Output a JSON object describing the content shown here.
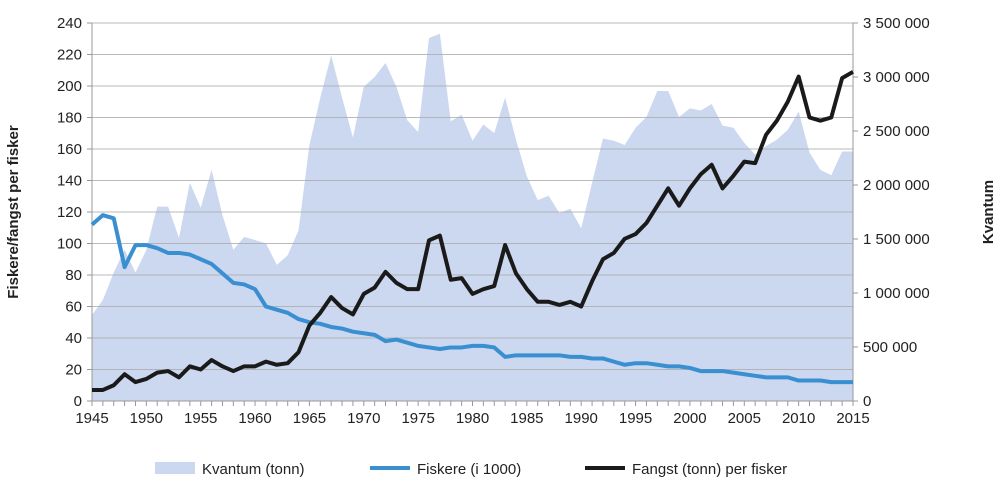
{
  "chart_data": {
    "type": "area+line",
    "title": "",
    "xlabel": "",
    "ylabel": "Fiskere/fangst per fisker",
    "y2label": "Kvantum",
    "xlim": [
      1945,
      2015
    ],
    "ylim": [
      0,
      240
    ],
    "y2lim": [
      0,
      3500000
    ],
    "xticks": [
      "1945",
      "1950",
      "1955",
      "1960",
      "1965",
      "1970",
      "1975",
      "1980",
      "1985",
      "1990",
      "1995",
      "2000",
      "2005",
      "2010",
      "2015"
    ],
    "yticks": [
      "0",
      "20",
      "40",
      "60",
      "80",
      "100",
      "120",
      "140",
      "160",
      "180",
      "200",
      "220",
      "240"
    ],
    "y2ticks": [
      "0",
      "500 000",
      "1 000 000",
      "1 500 000",
      "2 000 000",
      "2 500 000",
      "3 000 000",
      "3 500 000"
    ],
    "grid": true,
    "legend_position": "bottom",
    "x_start": 1945,
    "series": [
      {
        "name": "Kvantum (tonn)",
        "kind": "area",
        "axis": "right",
        "color": "#cbd8ef",
        "values": [
          796000,
          935000,
          1190000,
          1400000,
          1190000,
          1400000,
          1800000,
          1800000,
          1510000,
          2020000,
          1790000,
          2140000,
          1720000,
          1400000,
          1520000,
          1490000,
          1460000,
          1260000,
          1350000,
          1580000,
          2370000,
          2810000,
          3200000,
          2810000,
          2440000,
          2910000,
          3000000,
          3130000,
          2910000,
          2600000,
          2490000,
          3360000,
          3400000,
          2590000,
          2650000,
          2410000,
          2560000,
          2480000,
          2810000,
          2420000,
          2080000,
          1860000,
          1900000,
          1740000,
          1780000,
          1600000,
          2020000,
          2430000,
          2410000,
          2370000,
          2530000,
          2630000,
          2870000,
          2870000,
          2630000,
          2710000,
          2690000,
          2750000,
          2550000,
          2530000,
          2390000,
          2280000,
          2360000,
          2420000,
          2510000,
          2680000,
          2300000,
          2140000,
          2090000,
          2310000,
          2310000
        ]
      },
      {
        "name": "Fiskere (i 1000)",
        "kind": "line",
        "axis": "left",
        "color": "#3a8fd1",
        "values": [
          112,
          118,
          116,
          85,
          99,
          99,
          97,
          94,
          94,
          93,
          90,
          87,
          81,
          75,
          74,
          71,
          60,
          58,
          56,
          52,
          50,
          49,
          47,
          46,
          44,
          43,
          42,
          38,
          39,
          37,
          35,
          34,
          33,
          34,
          34,
          35,
          35,
          34,
          28,
          29,
          29,
          29,
          29,
          29,
          28,
          28,
          27,
          27,
          25,
          23,
          24,
          24,
          23,
          22,
          22,
          21,
          19,
          19,
          19,
          18,
          17,
          16,
          15,
          15,
          15,
          13,
          13,
          13,
          12,
          12,
          12
        ]
      },
      {
        "name": "Fangst (tonn) per fisker",
        "kind": "line",
        "axis": "left",
        "color": "#1a1a1a",
        "values": [
          7,
          7,
          10,
          17,
          12,
          14,
          18,
          19,
          15,
          22,
          20,
          26,
          22,
          19,
          22,
          22,
          25,
          23,
          24,
          31,
          48,
          56,
          66,
          59,
          55,
          68,
          72,
          82,
          75,
          71,
          71,
          102,
          105,
          77,
          78,
          68,
          71,
          73,
          99,
          81,
          71,
          63,
          63,
          61,
          63,
          60,
          76,
          90,
          94,
          103,
          106,
          113,
          124,
          135,
          124,
          135,
          144,
          150,
          135,
          143,
          152,
          151,
          169,
          178,
          190,
          206,
          180,
          178,
          180,
          205,
          209
        ]
      }
    ]
  }
}
